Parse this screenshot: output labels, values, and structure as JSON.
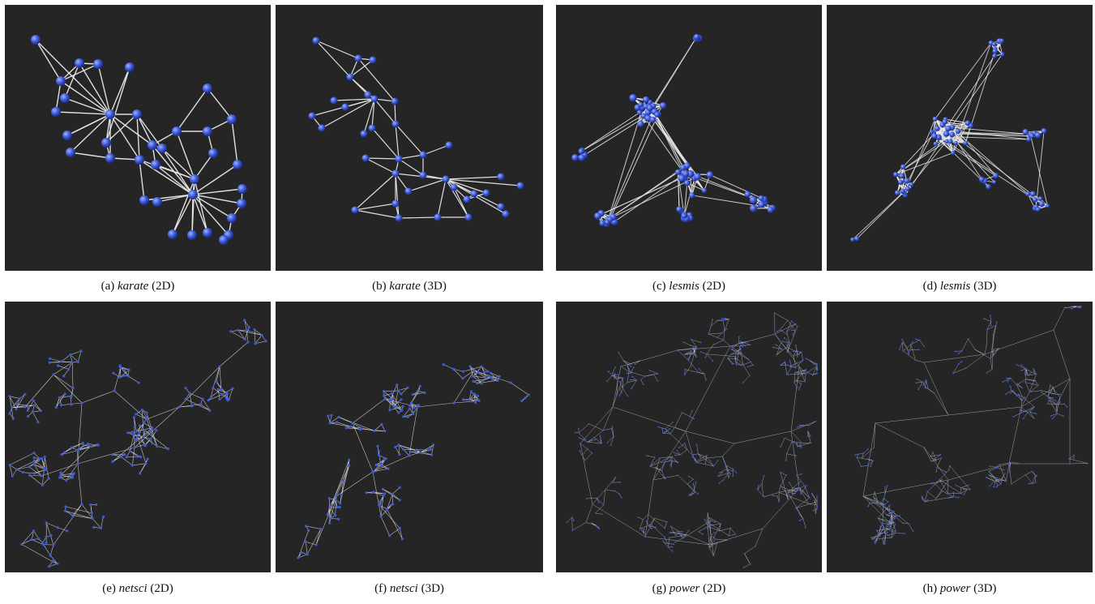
{
  "colors": {
    "panel_background": "#252525",
    "node": "#3d5bd9",
    "edge": "#e9e9e9",
    "caption_text": "#111111"
  },
  "panels": [
    {
      "id": "a",
      "label": "(a)",
      "dataset": "karate",
      "mode": "(2D)"
    },
    {
      "id": "b",
      "label": "(b)",
      "dataset": "karate",
      "mode": "(3D)"
    },
    {
      "id": "c",
      "label": "(c)",
      "dataset": "lesmis",
      "mode": "(2D)"
    },
    {
      "id": "d",
      "label": "(d)",
      "dataset": "lesmis",
      "mode": "(3D)"
    },
    {
      "id": "e",
      "label": "(e)",
      "dataset": "netsci",
      "mode": "(2D)"
    },
    {
      "id": "f",
      "label": "(f)",
      "dataset": "netsci",
      "mode": "(3D)"
    },
    {
      "id": "g",
      "label": "(g)",
      "dataset": "power",
      "mode": "(2D)"
    },
    {
      "id": "h",
      "label": "(h)",
      "dataset": "power",
      "mode": "(3D)"
    }
  ]
}
